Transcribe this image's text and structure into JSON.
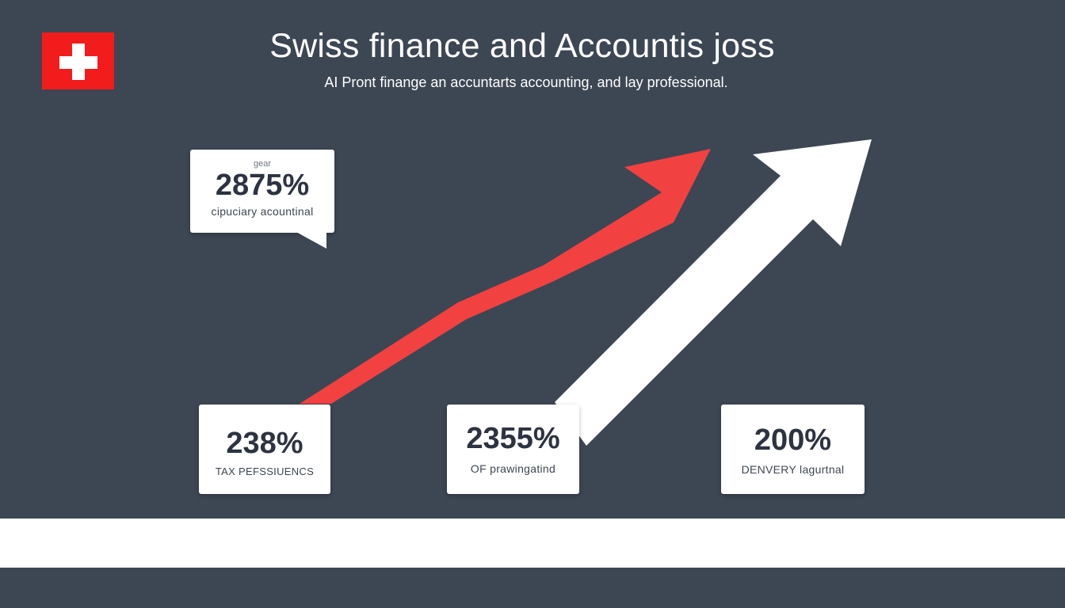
{
  "header": {
    "title": "Swiss finance and Accountis joss",
    "subtitle": "AI Pront finange an accuntarts accounting, and lay professional."
  },
  "flag": {
    "icon": "swiss-flag-icon",
    "color": "#f21c1c"
  },
  "cards": [
    {
      "kicker": "gear",
      "value": "2875%",
      "label": "cipuciary acountinal"
    },
    {
      "value": "238%",
      "label": "TAX PEFSSIUENCS"
    },
    {
      "value": "2355%",
      "label": "OF prawingatind"
    },
    {
      "value": "200%",
      "label": "DENVERY lagurtnal"
    }
  ],
  "colors": {
    "background": "#3d4653",
    "accent_red": "#f24141",
    "card": "#ffffff",
    "text_dark": "#2d3340"
  },
  "arrows": [
    {
      "name": "red-trend-arrow",
      "color": "#f24141"
    },
    {
      "name": "white-trend-arrow",
      "color": "#ffffff"
    }
  ]
}
